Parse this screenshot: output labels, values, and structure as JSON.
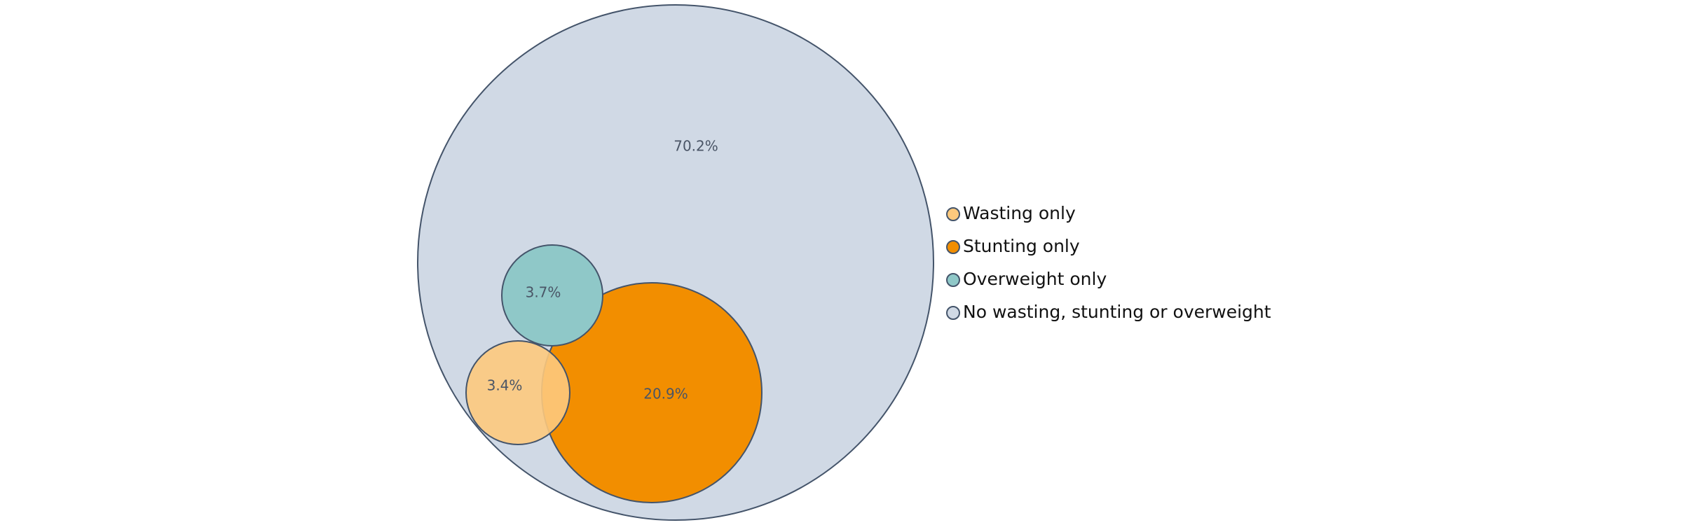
{
  "chart_data": {
    "type": "pie",
    "style": "nested-proportional-circles",
    "title": "",
    "legend_position": "right",
    "series": [
      {
        "name": "Wasting only",
        "value": 3.4,
        "label": "3.4%",
        "color": "#fdc97d"
      },
      {
        "name": "Stunting only",
        "value": 20.9,
        "label": "20.9%",
        "color": "#f28e00"
      },
      {
        "name": "Overweight only",
        "value": 3.7,
        "label": "3.7%",
        "color": "#8fc8c8"
      },
      {
        "name": "No wasting, stunting or overweight",
        "value": 70.2,
        "label": "70.2%",
        "color": "#d0d9e5"
      }
    ],
    "outline_color": "#44546a"
  }
}
